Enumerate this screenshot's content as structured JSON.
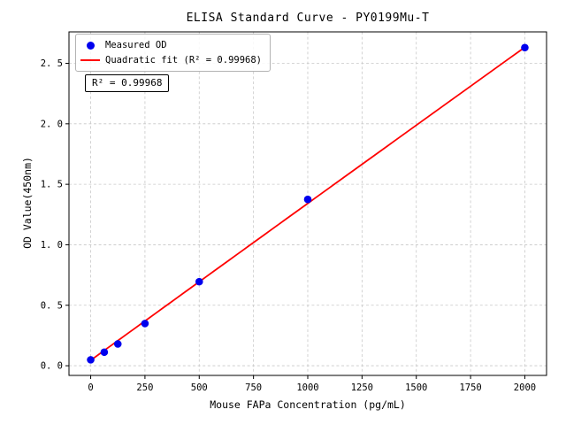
{
  "chart_data": {
    "type": "scatter",
    "title": "ELISA Standard Curve - PY0199Mu-T",
    "xlabel": "Mouse FAPa Concentration (pg/mL)",
    "ylabel": "OD Value(450nm)",
    "xlim": [
      -100,
      2100
    ],
    "ylim": [
      -0.08,
      2.76
    ],
    "grid": true,
    "grid_color": "#c8c8c8",
    "axis_color": "#000000",
    "xticks": {
      "values": [
        0,
        250,
        500,
        750,
        1000,
        1250,
        1500,
        1750,
        2000
      ],
      "labels": [
        "0",
        "250",
        "500",
        "750",
        "1000",
        "1250",
        "1500",
        "1750",
        "2000"
      ]
    },
    "yticks": {
      "values": [
        0.0,
        0.5,
        1.0,
        1.5,
        2.0,
        2.5
      ],
      "labels": [
        "0. 0",
        "0. 5",
        "1. 0",
        "1. 5",
        "2. 0",
        "2. 5"
      ]
    },
    "series": [
      {
        "name": "Measured OD",
        "type": "scatter",
        "marker": "circle",
        "color": "#0000ee",
        "points": [
          {
            "x": 0,
            "y": 0.049
          },
          {
            "x": 62.5,
            "y": 0.112
          },
          {
            "x": 125,
            "y": 0.18
          },
          {
            "x": 250,
            "y": 0.349
          },
          {
            "x": 500,
            "y": 0.695
          },
          {
            "x": 1000,
            "y": 1.375
          },
          {
            "x": 2000,
            "y": 2.63
          }
        ]
      },
      {
        "name": "Quadratic fit",
        "type": "quadratic_fit",
        "color": "#ff0000",
        "coefficients": {
          "a": -3e-09,
          "b": 0.0013,
          "c": 0.045
        },
        "x_range": [
          0,
          2000
        ],
        "r_squared": 0.99968
      }
    ],
    "legend": {
      "position": "upper left",
      "items": [
        {
          "label": "Measured OD",
          "marker": "dot",
          "color": "#0000ee"
        },
        {
          "label": "Quadratic fit (R² = 0.99968)",
          "marker": "line",
          "color": "#ff0000"
        }
      ]
    },
    "annotation": {
      "text": "R² = 0.99968"
    }
  }
}
